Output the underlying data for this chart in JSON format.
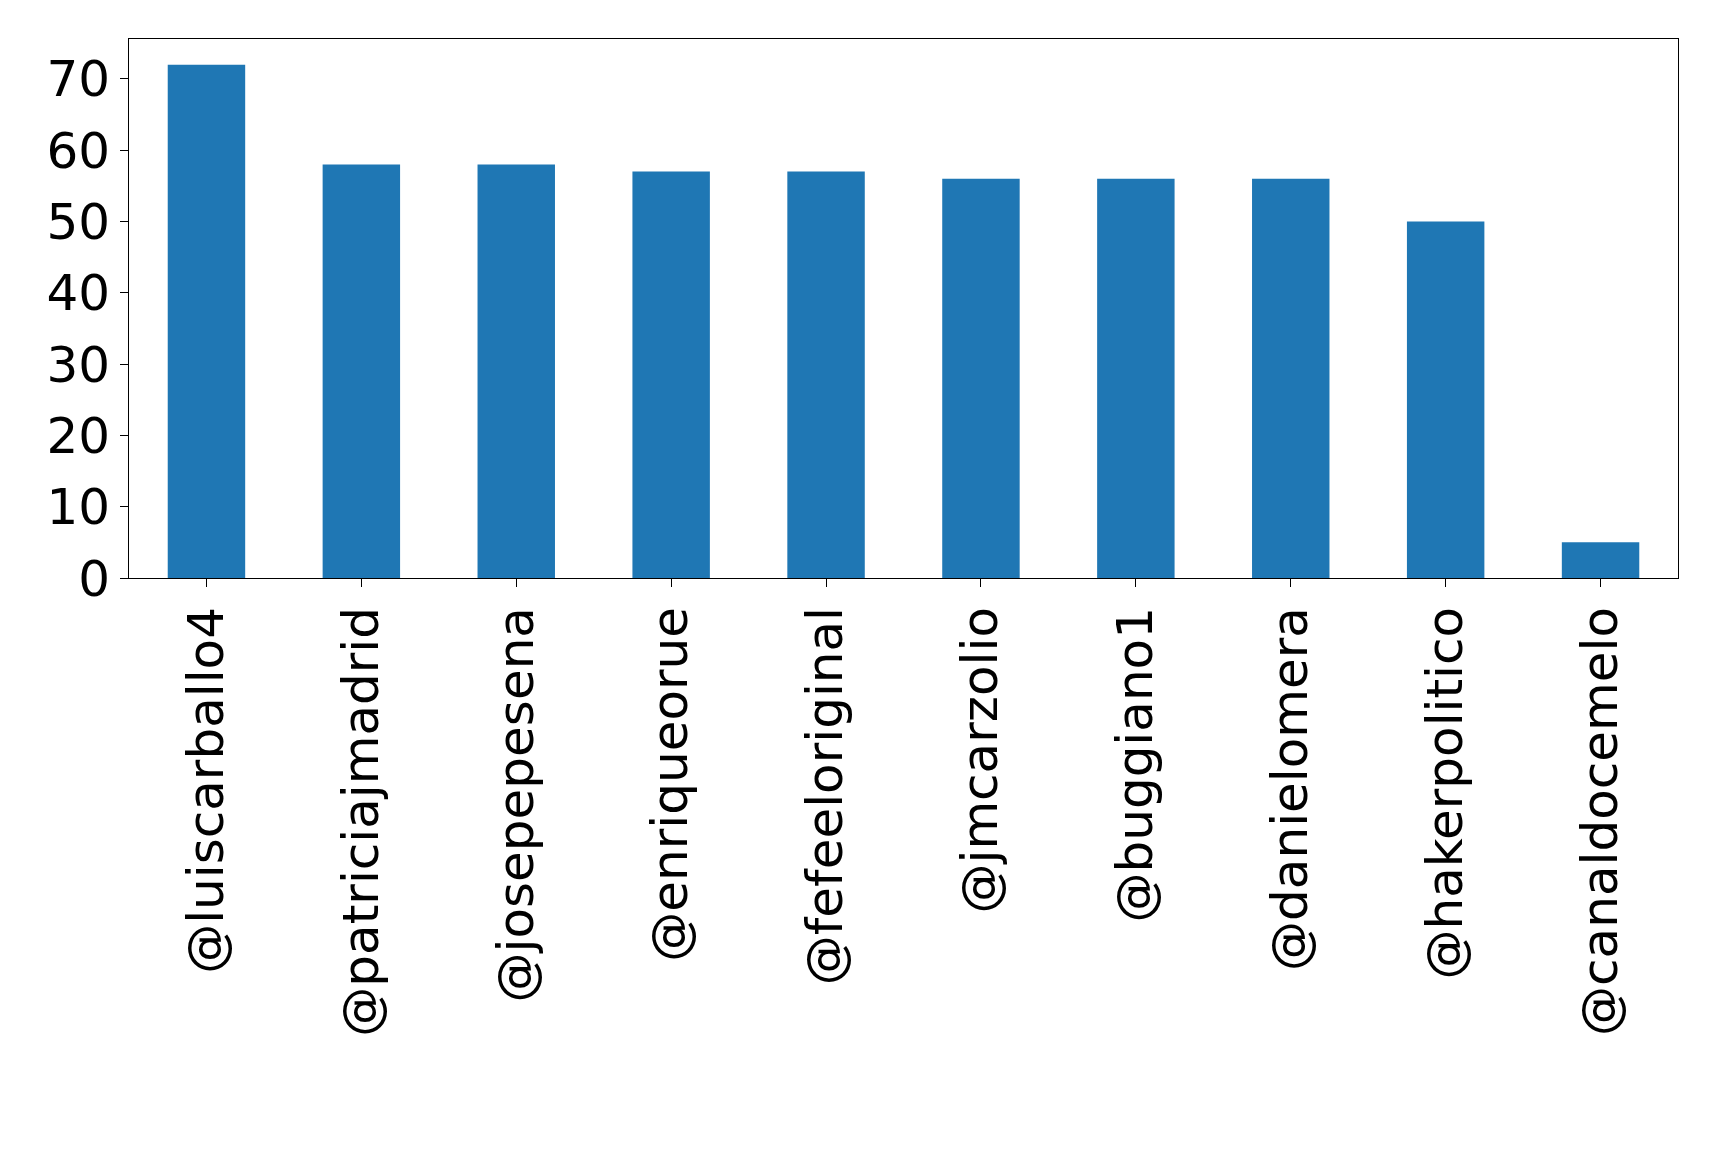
{
  "chart_data": {
    "type": "bar",
    "categories": [
      "@luiscarballo4",
      "@patriciajmadrid",
      "@josepepesena",
      "@enriqueorue",
      "@fefeeloriginal",
      "@jmcarzolio",
      "@buggiano1",
      "@danielomera",
      "@hakerpolitico",
      "@canaldocemelo"
    ],
    "values": [
      72,
      58,
      58,
      57,
      57,
      56,
      56,
      56,
      50,
      5
    ],
    "color": "#1f77b4",
    "ylim": [
      0,
      75.6
    ],
    "yticks": [
      0,
      10,
      20,
      30,
      40,
      50,
      60,
      70
    ],
    "grid": false,
    "legend": false
  }
}
